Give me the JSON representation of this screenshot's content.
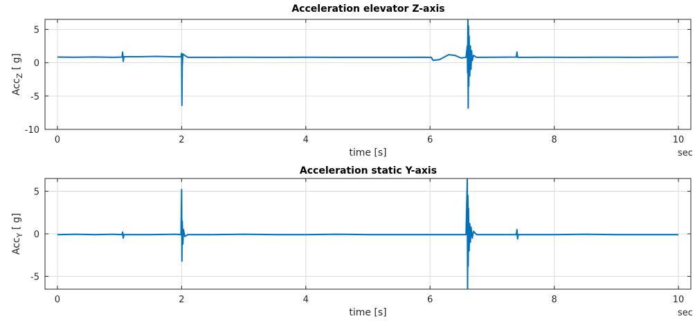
{
  "chart_data": [
    {
      "type": "line",
      "title": "Acceleration elevator Z-axis",
      "xlabel": "time [s]",
      "ylabel_main": "Acc",
      "ylabel_sub": "Z",
      "ylabel_tail": " [ g]",
      "x_unit_label": "sec",
      "xlim": [
        -0.2,
        10.2
      ],
      "ylim": [
        -10,
        6.5
      ],
      "xticks": [
        0,
        2,
        4,
        6,
        8,
        10
      ],
      "yticks": [
        -10,
        -5,
        0,
        5
      ],
      "grid": true,
      "series": [
        {
          "color": "#0072BD",
          "points": [
            [
              0,
              0.85
            ],
            [
              0.3,
              0.82
            ],
            [
              0.6,
              0.86
            ],
            [
              0.9,
              0.8
            ],
            [
              1.04,
              0.85
            ],
            [
              1.05,
              1.6
            ],
            [
              1.06,
              0.2
            ],
            [
              1.07,
              0.9
            ],
            [
              1.3,
              0.9
            ],
            [
              1.6,
              0.95
            ],
            [
              1.9,
              0.88
            ],
            [
              1.99,
              0.9
            ],
            [
              2.0,
              1.4
            ],
            [
              2.005,
              -6.4
            ],
            [
              2.01,
              -0.5
            ],
            [
              2.02,
              1.3
            ],
            [
              2.05,
              1.1
            ],
            [
              2.1,
              0.8
            ],
            [
              2.5,
              0.8
            ],
            [
              3.0,
              0.82
            ],
            [
              3.5,
              0.8
            ],
            [
              4.0,
              0.82
            ],
            [
              4.5,
              0.8
            ],
            [
              5.0,
              0.8
            ],
            [
              5.5,
              0.8
            ],
            [
              5.9,
              0.82
            ],
            [
              6.02,
              0.8
            ],
            [
              6.05,
              0.35
            ],
            [
              6.15,
              0.45
            ],
            [
              6.3,
              1.2
            ],
            [
              6.4,
              1.1
            ],
            [
              6.5,
              0.7
            ],
            [
              6.58,
              0.8
            ],
            [
              6.6,
              2.5
            ],
            [
              6.605,
              -1.5
            ],
            [
              6.61,
              6.4
            ],
            [
              6.615,
              -6.8
            ],
            [
              6.62,
              5.5
            ],
            [
              6.625,
              -3.5
            ],
            [
              6.63,
              4.0
            ],
            [
              6.64,
              -2.0
            ],
            [
              6.65,
              2.5
            ],
            [
              6.66,
              -1.0
            ],
            [
              6.67,
              1.8
            ],
            [
              6.68,
              0.3
            ],
            [
              6.7,
              1.1
            ],
            [
              6.75,
              0.8
            ],
            [
              7.0,
              0.82
            ],
            [
              7.39,
              0.85
            ],
            [
              7.4,
              1.6
            ],
            [
              7.41,
              0.8
            ],
            [
              7.8,
              0.82
            ],
            [
              8.3,
              0.8
            ],
            [
              8.8,
              0.82
            ],
            [
              9.3,
              0.8
            ],
            [
              10,
              0.85
            ]
          ]
        }
      ]
    },
    {
      "type": "line",
      "title": "Acceleration static Y-axis",
      "xlabel": "time [s]",
      "ylabel_main": "Acc",
      "ylabel_sub": "Y",
      "ylabel_tail": " [ g]",
      "x_unit_label": "sec",
      "xlim": [
        -0.2,
        10.2
      ],
      "ylim": [
        -6.5,
        6.5
      ],
      "xticks": [
        0,
        2,
        4,
        6,
        8,
        10
      ],
      "yticks": [
        -5,
        0,
        5
      ],
      "grid": true,
      "series": [
        {
          "color": "#0072BD",
          "points": [
            [
              0,
              -0.1
            ],
            [
              0.3,
              -0.05
            ],
            [
              0.6,
              -0.1
            ],
            [
              0.9,
              -0.05
            ],
            [
              1.04,
              -0.1
            ],
            [
              1.05,
              0.2
            ],
            [
              1.06,
              -0.5
            ],
            [
              1.07,
              -0.1
            ],
            [
              1.5,
              -0.1
            ],
            [
              1.9,
              -0.05
            ],
            [
              1.99,
              -0.1
            ],
            [
              2.0,
              5.2
            ],
            [
              2.005,
              -3.2
            ],
            [
              2.01,
              1.5
            ],
            [
              2.02,
              -1.2
            ],
            [
              2.03,
              0.5
            ],
            [
              2.05,
              -0.3
            ],
            [
              2.1,
              -0.1
            ],
            [
              2.5,
              -0.1
            ],
            [
              3.0,
              -0.05
            ],
            [
              3.5,
              -0.1
            ],
            [
              4.0,
              -0.1
            ],
            [
              4.5,
              -0.05
            ],
            [
              5.0,
              -0.1
            ],
            [
              5.5,
              -0.1
            ],
            [
              6.0,
              -0.1
            ],
            [
              6.5,
              -0.1
            ],
            [
              6.58,
              -0.1
            ],
            [
              6.6,
              6.4
            ],
            [
              6.605,
              -6.4
            ],
            [
              6.61,
              4.5
            ],
            [
              6.615,
              -3.8
            ],
            [
              6.62,
              3.0
            ],
            [
              6.63,
              -2.0
            ],
            [
              6.64,
              1.2
            ],
            [
              6.65,
              -1.0
            ],
            [
              6.66,
              0.8
            ],
            [
              6.68,
              -0.5
            ],
            [
              6.7,
              0.3
            ],
            [
              6.75,
              -0.1
            ],
            [
              7.0,
              -0.1
            ],
            [
              7.39,
              -0.1
            ],
            [
              7.4,
              0.5
            ],
            [
              7.41,
              -0.6
            ],
            [
              7.42,
              -0.1
            ],
            [
              8.0,
              -0.1
            ],
            [
              8.5,
              -0.05
            ],
            [
              9.0,
              -0.1
            ],
            [
              9.5,
              -0.1
            ],
            [
              10,
              -0.1
            ]
          ]
        }
      ]
    }
  ]
}
